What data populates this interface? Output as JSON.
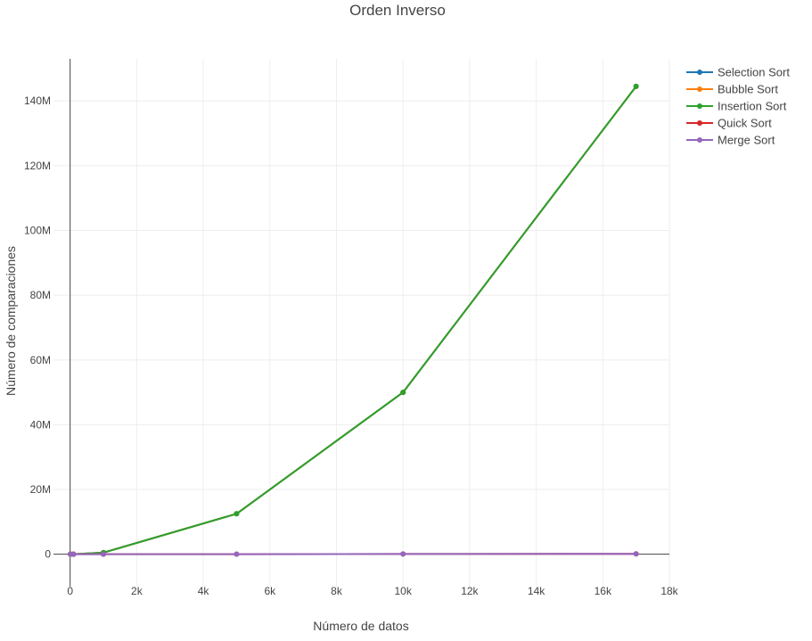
{
  "chart_data": {
    "type": "line",
    "title": "Orden Inverso",
    "xlabel": "Número de datos",
    "ylabel": "Número de comparaciones",
    "xlim": [
      -500,
      18000
    ],
    "ylim": [
      -10000000,
      153000000
    ],
    "x_ticks": [
      {
        "value": 0,
        "label": "0"
      },
      {
        "value": 2000,
        "label": "2k"
      },
      {
        "value": 4000,
        "label": "4k"
      },
      {
        "value": 6000,
        "label": "6k"
      },
      {
        "value": 8000,
        "label": "8k"
      },
      {
        "value": 10000,
        "label": "10k"
      },
      {
        "value": 12000,
        "label": "12k"
      },
      {
        "value": 14000,
        "label": "14k"
      },
      {
        "value": 16000,
        "label": "16k"
      },
      {
        "value": 18000,
        "label": "18k"
      }
    ],
    "y_ticks": [
      {
        "value": 0,
        "label": "0"
      },
      {
        "value": 20000000,
        "label": "20M"
      },
      {
        "value": 40000000,
        "label": "40M"
      },
      {
        "value": 60000000,
        "label": "60M"
      },
      {
        "value": 80000000,
        "label": "80M"
      },
      {
        "value": 100000000,
        "label": "100M"
      },
      {
        "value": 120000000,
        "label": "120M"
      },
      {
        "value": 140000000,
        "label": "140M"
      }
    ],
    "grid": true,
    "legend_position": "top-right",
    "x": [
      10,
      100,
      1000,
      5000,
      10000,
      17000
    ],
    "series": [
      {
        "name": "Selection Sort",
        "color": "#1f77b4",
        "values": [
          45,
          4950,
          499500,
          12497500,
          49995000,
          144491500
        ]
      },
      {
        "name": "Bubble Sort",
        "color": "#ff7f0e",
        "values": [
          45,
          4950,
          499500,
          12497500,
          49995000,
          144491500
        ]
      },
      {
        "name": "Insertion Sort",
        "color": "#2ca02c",
        "values": [
          45,
          4950,
          499500,
          12497500,
          49995000,
          144491500
        ]
      },
      {
        "name": "Quick Sort",
        "color": "#d62728",
        "values": [
          25,
          316,
          4932,
          32004,
          69008,
          124000
        ]
      },
      {
        "name": "Merge Sort",
        "color": "#9467bd",
        "values": [
          15,
          316,
          4932,
          32004,
          69008,
          124000
        ]
      }
    ]
  }
}
